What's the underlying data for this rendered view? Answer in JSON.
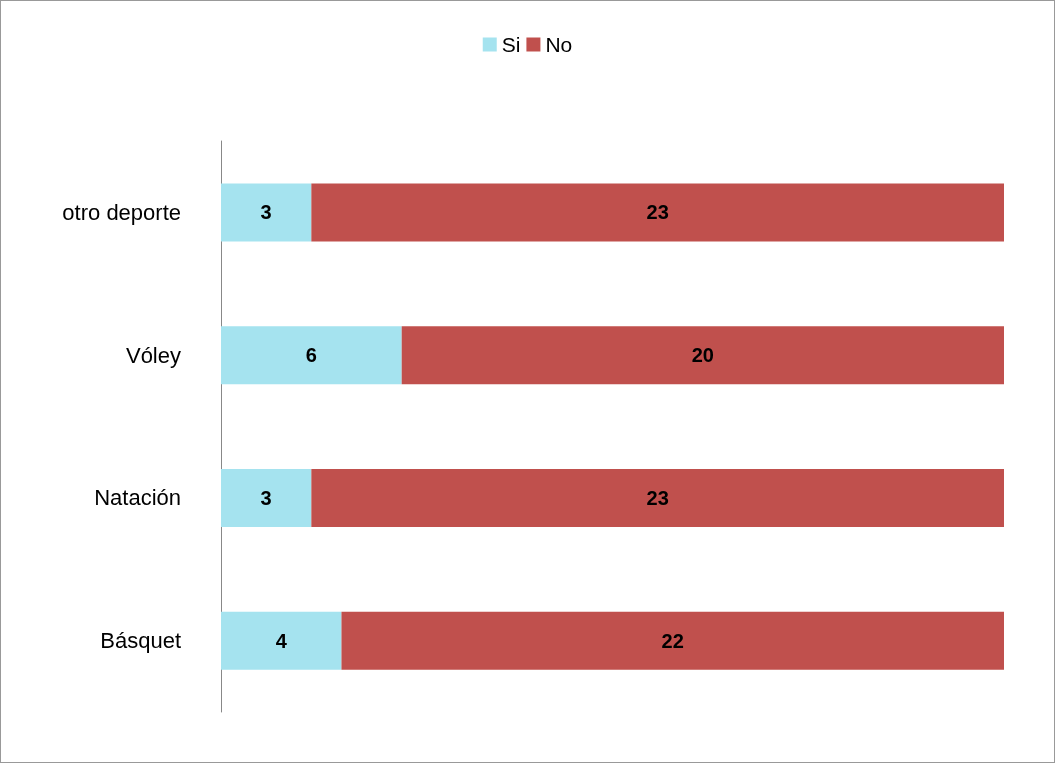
{
  "chart_data": {
    "type": "bar",
    "orientation": "horizontal",
    "stacked": true,
    "categories": [
      "otro deporte",
      "Vóley",
      "Natación",
      "Básquet"
    ],
    "series": [
      {
        "name": "Si",
        "color": "#a5e3ef",
        "values": [
          3,
          6,
          3,
          4
        ]
      },
      {
        "name": "No",
        "color": "#c0504d",
        "values": [
          23,
          20,
          23,
          22
        ]
      }
    ],
    "xlim": [
      0,
      26
    ],
    "data_labels": true,
    "legend": "top",
    "grid": false,
    "tick_labels": "y"
  }
}
